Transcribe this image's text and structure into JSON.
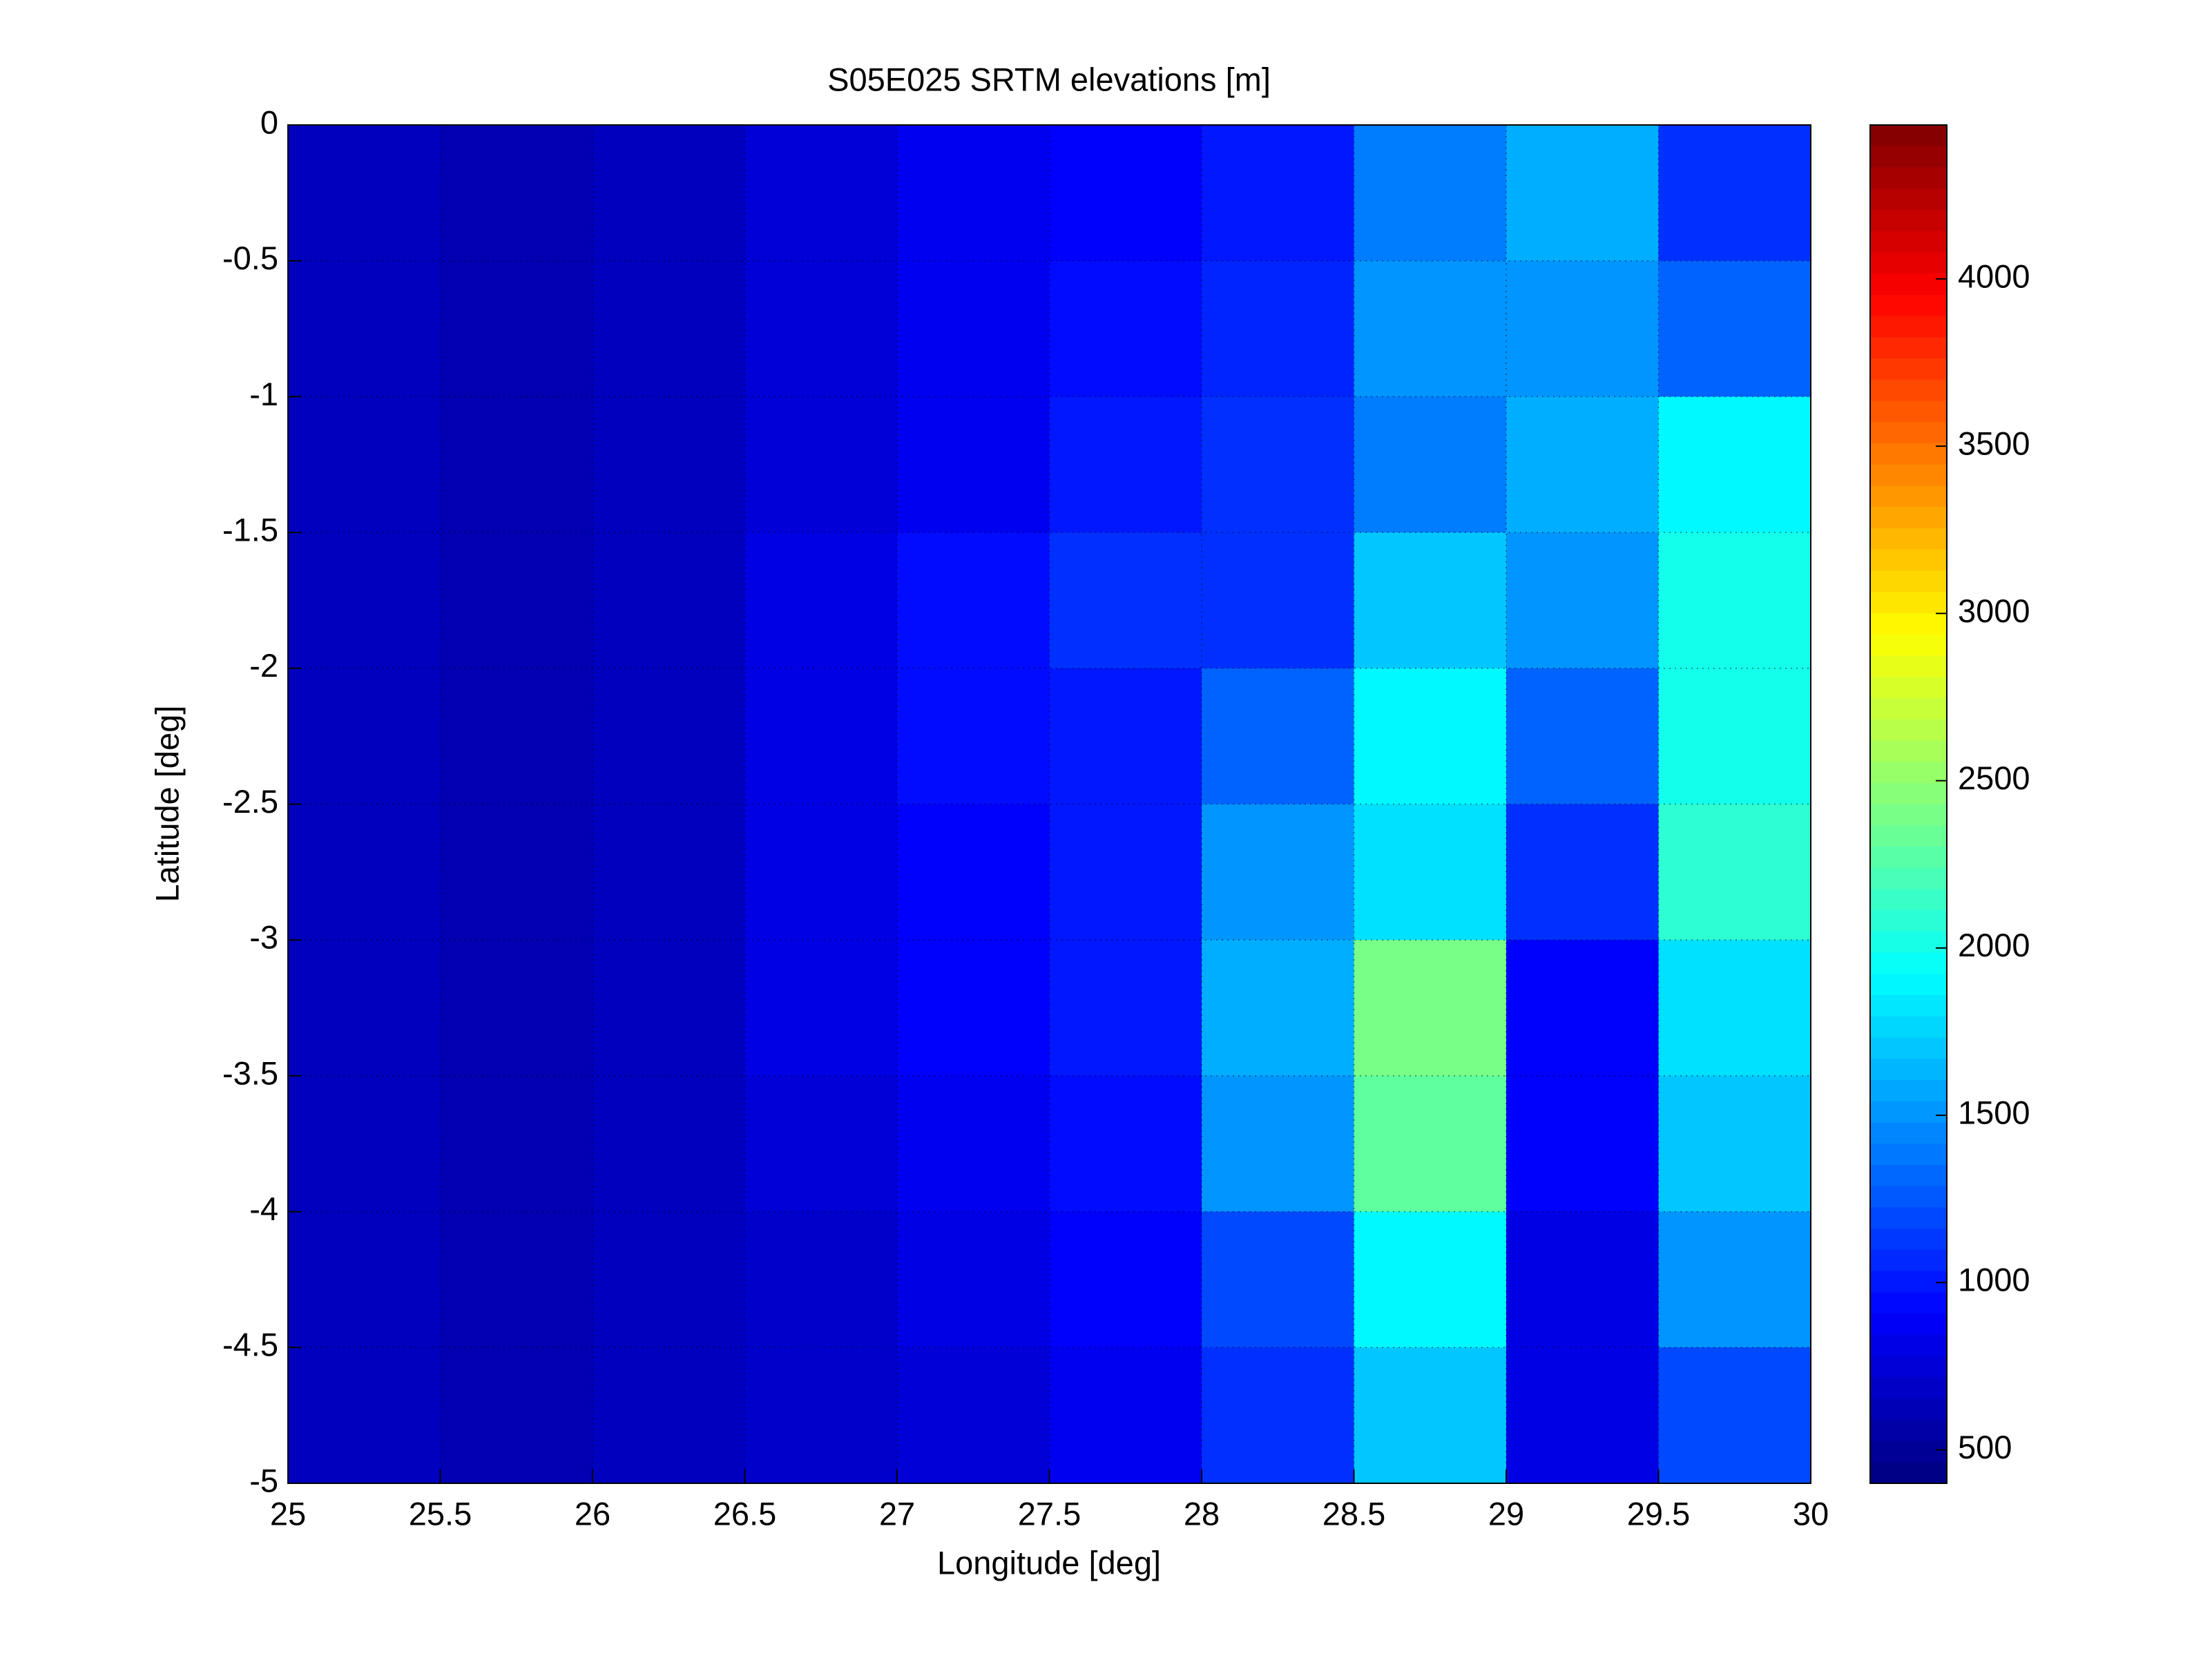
{
  "chart_data": {
    "type": "heatmap",
    "title": "S05E025 SRTM elevations [m]",
    "x_label": "Longitude [deg]",
    "y_label": "Latitude [deg]",
    "xlim": [
      25,
      30
    ],
    "ylim": [
      -5,
      0
    ],
    "xticks": [
      25,
      25.5,
      26,
      26.5,
      27,
      27.5,
      28,
      28.5,
      29,
      29.5,
      30
    ],
    "yticks": [
      0,
      -0.5,
      -1,
      -1.5,
      -2,
      -2.5,
      -3,
      -3.5,
      -4,
      -4.5,
      -5
    ],
    "x": [
      25,
      25.5,
      26,
      26.5,
      27,
      27.5,
      28,
      28.5,
      29,
      29.5,
      30
    ],
    "y": [
      0,
      -0.5,
      -1,
      -1.5,
      -2,
      -2.5,
      -3,
      -3.5,
      -4,
      -4.5,
      -5
    ],
    "z": [
      [
        650,
        600,
        650,
        750,
        850,
        900,
        1000,
        1400,
        1600,
        1100
      ],
      [
        650,
        600,
        650,
        750,
        850,
        950,
        1050,
        1500,
        1500,
        1300
      ],
      [
        650,
        600,
        650,
        750,
        850,
        1000,
        1100,
        1400,
        1600,
        1900
      ],
      [
        650,
        600,
        650,
        800,
        950,
        1100,
        1100,
        1700,
        1500,
        2000
      ],
      [
        650,
        600,
        650,
        800,
        950,
        1000,
        1300,
        1900,
        1300,
        2000
      ],
      [
        650,
        600,
        650,
        800,
        900,
        1000,
        1500,
        1800,
        1100,
        2100
      ],
      [
        650,
        600,
        650,
        800,
        900,
        1000,
        1600,
        2400,
        900,
        1800
      ],
      [
        650,
        600,
        650,
        750,
        850,
        950,
        1500,
        2300,
        900,
        1700
      ],
      [
        650,
        600,
        650,
        700,
        800,
        900,
        1200,
        1900,
        800,
        1500
      ],
      [
        650,
        600,
        650,
        700,
        750,
        850,
        1100,
        1700,
        800,
        1200
      ]
    ],
    "colormap": "jet",
    "clim": [
      400,
      4460
    ],
    "cticks": [
      500,
      1000,
      1500,
      2000,
      2500,
      3000,
      3500,
      4000
    ],
    "grid": true
  }
}
